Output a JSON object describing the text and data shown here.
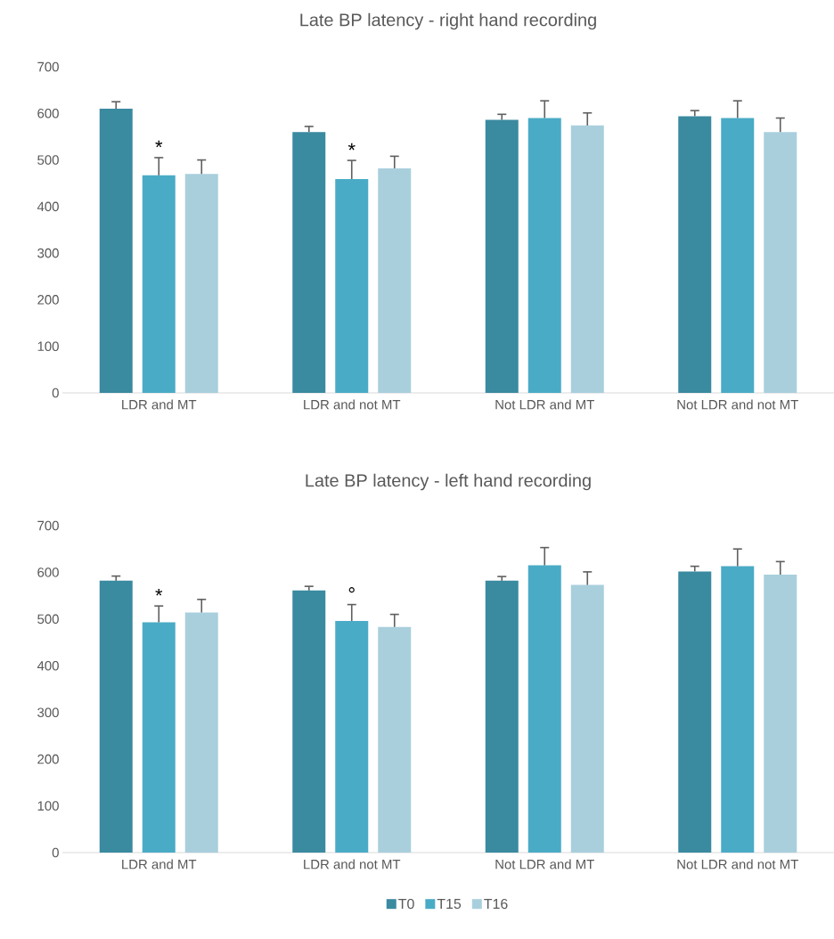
{
  "chart_data": [
    {
      "type": "bar",
      "title": "Late BP latency - right hand recording",
      "categories": [
        "LDR and MT",
        "LDR and not MT",
        "Not LDR and MT",
        "Not LDR and not MT"
      ],
      "series": [
        {
          "color": "#3a8aa0",
          "values": [
            610,
            560,
            586,
            594
          ],
          "errors": [
            15,
            12,
            12,
            12
          ]
        },
        {
          "color": "#4aabc6",
          "values": [
            467,
            459,
            590,
            590
          ],
          "errors": [
            38,
            40,
            37,
            37
          ]
        },
        {
          "color": "#a9cfdd",
          "values": [
            470,
            482,
            574,
            560
          ],
          "errors": [
            30,
            26,
            27,
            30
          ]
        }
      ],
      "annotations": [
        {
          "text": "*",
          "x": "LDR and MT",
          "y": 467
        },
        {
          "text": "*",
          "x": "LDR and not MT",
          "y": 459
        }
      ],
      "ylim": [
        0,
        700
      ],
      "yticks": [
        0,
        100,
        200,
        300,
        400,
        500,
        600,
        700
      ],
      "grid": false
    },
    {
      "type": "bar",
      "title": "Late BP latency - left hand recording",
      "categories": [
        "LDR and MT",
        "LDR and not MT",
        "Not LDR and MT",
        "Not LDR and not MT"
      ],
      "series": [
        {
          "name": "T0",
          "color": "#3a8aa0",
          "values": [
            582,
            561,
            582,
            602
          ],
          "errors": [
            10,
            9,
            9,
            11
          ]
        },
        {
          "name": "T15",
          "color": "#4aabc6",
          "values": [
            493,
            496,
            615,
            613
          ],
          "errors": [
            35,
            35,
            38,
            37
          ]
        },
        {
          "name": "T16",
          "color": "#a9cfdd",
          "values": [
            514,
            483,
            573,
            595
          ],
          "errors": [
            28,
            27,
            28,
            28
          ]
        }
      ],
      "annotations": [
        {
          "text": "*",
          "x": "LDR and MT",
          "y": 493
        },
        {
          "text": "°",
          "x": "LDR and not MT",
          "y": 496
        }
      ],
      "ylim": [
        0,
        700
      ],
      "yticks": [
        0,
        100,
        200,
        300,
        400,
        500,
        600,
        700
      ],
      "grid": false,
      "legend": "bottom"
    }
  ]
}
